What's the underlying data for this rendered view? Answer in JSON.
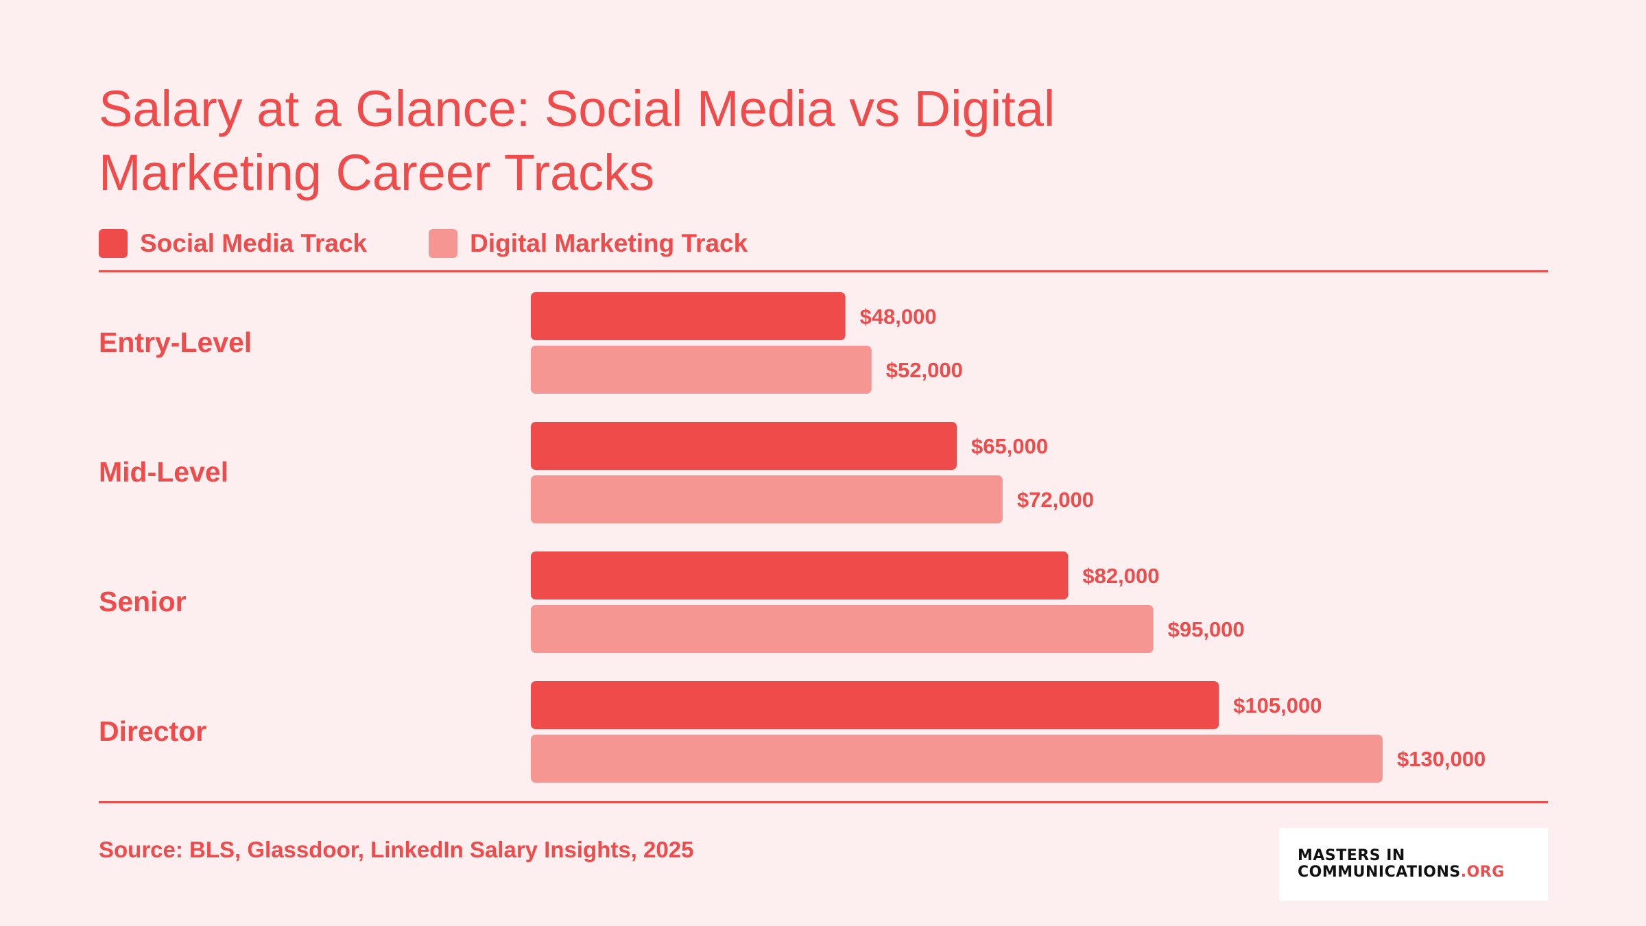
{
  "title_lines": [
    "Salary at a Glance: Social Media vs Digital",
    "Marketing Career Tracks"
  ],
  "legend": [
    {
      "label": "Social Media Track",
      "color": "#EE4B4A"
    },
    {
      "label": "Digital Marketing Track",
      "color": "#F69692"
    }
  ],
  "source": "Source: BLS, Glassdoor, LinkedIn Salary Insights, 2025",
  "logo": {
    "line1": "MASTERS IN",
    "line2_main": "COMMUNICATIONS",
    "line2_suffix": ".ORG"
  },
  "colors": {
    "accent": "#EE4B4A",
    "secondary": "#F69692",
    "background": "#FDEFEF"
  },
  "chart_data": {
    "type": "bar",
    "orientation": "horizontal",
    "categories": [
      "Entry-Level",
      "Mid-Level",
      "Senior",
      "Director"
    ],
    "series": [
      {
        "name": "Social Media Track",
        "values": [
          48000,
          65000,
          82000,
          105000
        ],
        "labels": [
          "$48,000",
          "$65,000",
          "$82,000",
          "$105,000"
        ],
        "color": "#EE4B4A"
      },
      {
        "name": "Digital Marketing Track",
        "values": [
          52000,
          72000,
          95000,
          130000
        ],
        "labels": [
          "$52,000",
          "$72,000",
          "$95,000",
          "$130,000"
        ],
        "color": "#F69692"
      }
    ],
    "xlim": [
      0,
      130000
    ],
    "grid": false,
    "legend_position": "top-left"
  }
}
